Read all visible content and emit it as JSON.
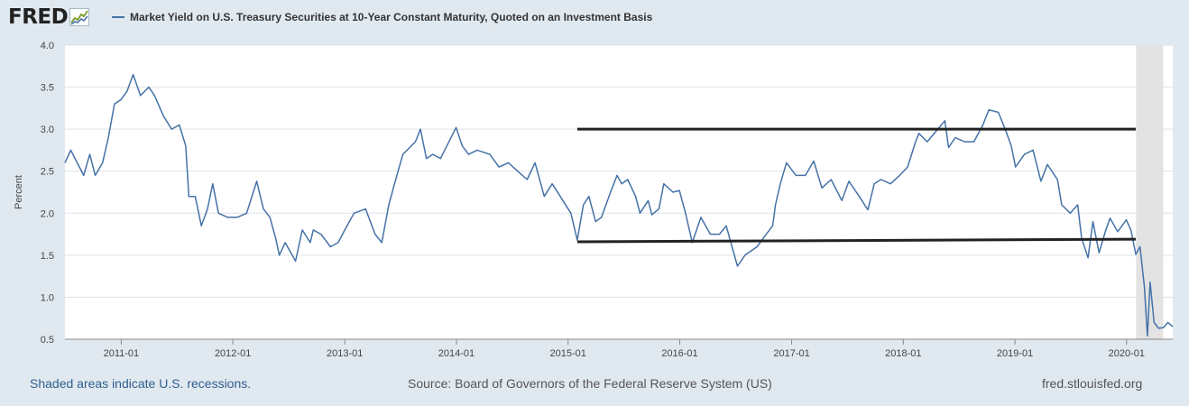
{
  "logo": {
    "text": "FRED",
    "icon": "fred-graph-icon"
  },
  "chart_data": {
    "type": "line",
    "title": "Market Yield on U.S. Treasury Securities at 10-Year Constant Maturity, Quoted on an Investment Basis",
    "ylabel": "Percent",
    "xlabel": "",
    "ylim": [
      0.5,
      4.0
    ],
    "xlim": [
      "2010-07-01",
      "2020-05-31"
    ],
    "y_ticks": [
      "0.5",
      "1.0",
      "1.5",
      "2.0",
      "2.5",
      "3.0",
      "3.5",
      "4.0"
    ],
    "x_ticks": [
      "2011-01",
      "2012-01",
      "2013-01",
      "2014-01",
      "2015-01",
      "2016-01",
      "2017-01",
      "2018-01",
      "2019-01",
      "2020-01"
    ],
    "grid": true,
    "series": [
      {
        "name": "Market Yield on U.S. Treasury Securities at 10-Year Constant Maturity, Quoted on an Investment Basis",
        "color": "#4572a7",
        "points": [
          [
            "2010-07-01",
            2.6
          ],
          [
            "2010-07-20",
            2.75
          ],
          [
            "2010-08-10",
            2.6
          ],
          [
            "2010-08-31",
            2.45
          ],
          [
            "2010-09-20",
            2.7
          ],
          [
            "2010-10-08",
            2.45
          ],
          [
            "2010-11-01",
            2.6
          ],
          [
            "2010-11-20",
            2.9
          ],
          [
            "2010-12-10",
            3.3
          ],
          [
            "2010-12-31",
            3.35
          ],
          [
            "2011-01-20",
            3.45
          ],
          [
            "2011-02-09",
            3.65
          ],
          [
            "2011-03-05",
            3.4
          ],
          [
            "2011-04-01",
            3.5
          ],
          [
            "2011-04-20",
            3.4
          ],
          [
            "2011-05-20",
            3.15
          ],
          [
            "2011-06-15",
            3.0
          ],
          [
            "2011-07-10",
            3.05
          ],
          [
            "2011-07-31",
            2.8
          ],
          [
            "2011-08-10",
            2.2
          ],
          [
            "2011-08-31",
            2.2
          ],
          [
            "2011-09-20",
            1.85
          ],
          [
            "2011-10-10",
            2.05
          ],
          [
            "2011-10-27",
            2.35
          ],
          [
            "2011-11-15",
            2.0
          ],
          [
            "2011-12-15",
            1.95
          ],
          [
            "2012-01-15",
            1.95
          ],
          [
            "2012-02-15",
            2.0
          ],
          [
            "2012-03-19",
            2.38
          ],
          [
            "2012-04-10",
            2.05
          ],
          [
            "2012-05-01",
            1.95
          ],
          [
            "2012-05-20",
            1.7
          ],
          [
            "2012-06-01",
            1.5
          ],
          [
            "2012-06-20",
            1.65
          ],
          [
            "2012-07-24",
            1.43
          ],
          [
            "2012-08-15",
            1.8
          ],
          [
            "2012-09-10",
            1.65
          ],
          [
            "2012-09-20",
            1.8
          ],
          [
            "2012-10-15",
            1.75
          ],
          [
            "2012-11-15",
            1.6
          ],
          [
            "2012-12-10",
            1.65
          ],
          [
            "2013-01-01",
            1.8
          ],
          [
            "2013-01-31",
            2.0
          ],
          [
            "2013-03-10",
            2.05
          ],
          [
            "2013-04-10",
            1.75
          ],
          [
            "2013-05-02",
            1.65
          ],
          [
            "2013-05-25",
            2.1
          ],
          [
            "2013-06-20",
            2.45
          ],
          [
            "2013-07-10",
            2.7
          ],
          [
            "2013-08-20",
            2.85
          ],
          [
            "2013-09-05",
            3.0
          ],
          [
            "2013-09-25",
            2.65
          ],
          [
            "2013-10-15",
            2.7
          ],
          [
            "2013-11-10",
            2.65
          ],
          [
            "2013-12-31",
            3.02
          ],
          [
            "2014-01-20",
            2.8
          ],
          [
            "2014-02-10",
            2.7
          ],
          [
            "2014-03-10",
            2.75
          ],
          [
            "2014-04-20",
            2.7
          ],
          [
            "2014-05-20",
            2.55
          ],
          [
            "2014-06-20",
            2.6
          ],
          [
            "2014-07-20",
            2.5
          ],
          [
            "2014-08-20",
            2.4
          ],
          [
            "2014-09-15",
            2.6
          ],
          [
            "2014-10-15",
            2.2
          ],
          [
            "2014-11-10",
            2.35
          ],
          [
            "2014-12-15",
            2.15
          ],
          [
            "2015-01-10",
            2.0
          ],
          [
            "2015-01-31",
            1.68
          ],
          [
            "2015-02-20",
            2.1
          ],
          [
            "2015-03-10",
            2.2
          ],
          [
            "2015-04-01",
            1.9
          ],
          [
            "2015-04-20",
            1.95
          ],
          [
            "2015-05-20",
            2.25
          ],
          [
            "2015-06-10",
            2.45
          ],
          [
            "2015-06-25",
            2.35
          ],
          [
            "2015-07-15",
            2.4
          ],
          [
            "2015-08-10",
            2.2
          ],
          [
            "2015-08-24",
            2.0
          ],
          [
            "2015-09-20",
            2.15
          ],
          [
            "2015-10-02",
            1.98
          ],
          [
            "2015-10-25",
            2.05
          ],
          [
            "2015-11-10",
            2.35
          ],
          [
            "2015-12-10",
            2.25
          ],
          [
            "2015-12-31",
            2.27
          ],
          [
            "2016-01-20",
            2.0
          ],
          [
            "2016-02-11",
            1.65
          ],
          [
            "2016-03-10",
            1.95
          ],
          [
            "2016-04-10",
            1.75
          ],
          [
            "2016-05-10",
            1.75
          ],
          [
            "2016-06-01",
            1.85
          ],
          [
            "2016-06-20",
            1.6
          ],
          [
            "2016-07-08",
            1.37
          ],
          [
            "2016-08-01",
            1.5
          ],
          [
            "2016-09-10",
            1.6
          ],
          [
            "2016-10-10",
            1.75
          ],
          [
            "2016-10-31",
            1.85
          ],
          [
            "2016-11-09",
            2.1
          ],
          [
            "2016-11-25",
            2.35
          ],
          [
            "2016-12-15",
            2.6
          ],
          [
            "2017-01-15",
            2.45
          ],
          [
            "2017-02-15",
            2.45
          ],
          [
            "2017-03-14",
            2.62
          ],
          [
            "2017-04-10",
            2.3
          ],
          [
            "2017-05-10",
            2.4
          ],
          [
            "2017-06-14",
            2.15
          ],
          [
            "2017-07-07",
            2.38
          ],
          [
            "2017-08-10",
            2.2
          ],
          [
            "2017-09-07",
            2.04
          ],
          [
            "2017-09-28",
            2.35
          ],
          [
            "2017-10-20",
            2.4
          ],
          [
            "2017-11-20",
            2.35
          ],
          [
            "2017-12-20",
            2.45
          ],
          [
            "2018-01-15",
            2.55
          ],
          [
            "2018-02-10",
            2.85
          ],
          [
            "2018-02-21",
            2.95
          ],
          [
            "2018-03-20",
            2.85
          ],
          [
            "2018-04-24",
            3.0
          ],
          [
            "2018-05-17",
            3.1
          ],
          [
            "2018-05-29",
            2.78
          ],
          [
            "2018-06-20",
            2.9
          ],
          [
            "2018-07-20",
            2.85
          ],
          [
            "2018-08-20",
            2.85
          ],
          [
            "2018-09-18",
            3.05
          ],
          [
            "2018-10-08",
            3.23
          ],
          [
            "2018-11-08",
            3.2
          ],
          [
            "2018-11-30",
            3.0
          ],
          [
            "2018-12-20",
            2.8
          ],
          [
            "2019-01-03",
            2.55
          ],
          [
            "2019-02-01",
            2.7
          ],
          [
            "2019-03-01",
            2.75
          ],
          [
            "2019-03-27",
            2.38
          ],
          [
            "2019-04-17",
            2.58
          ],
          [
            "2019-05-20",
            2.4
          ],
          [
            "2019-06-03",
            2.1
          ],
          [
            "2019-07-01",
            2.0
          ],
          [
            "2019-07-25",
            2.1
          ],
          [
            "2019-08-07",
            1.7
          ],
          [
            "2019-08-28",
            1.47
          ],
          [
            "2019-09-13",
            1.9
          ],
          [
            "2019-10-03",
            1.53
          ],
          [
            "2019-10-25",
            1.8
          ],
          [
            "2019-11-08",
            1.94
          ],
          [
            "2019-12-03",
            1.78
          ],
          [
            "2019-12-31",
            1.92
          ],
          [
            "2020-01-15",
            1.8
          ],
          [
            "2020-01-31",
            1.51
          ],
          [
            "2020-02-14",
            1.6
          ],
          [
            "2020-02-28",
            1.13
          ],
          [
            "2020-03-09",
            0.54
          ],
          [
            "2020-03-18",
            1.18
          ],
          [
            "2020-03-31",
            0.7
          ],
          [
            "2020-04-15",
            0.63
          ],
          [
            "2020-05-01",
            0.64
          ],
          [
            "2020-05-15",
            0.7
          ],
          [
            "2020-05-31",
            0.65
          ]
        ]
      }
    ],
    "annotations": [
      {
        "kind": "horizontal-line",
        "color": "#222222",
        "x_start": "2015-01-31",
        "x_end": "2020-01-31",
        "y_start": 3.0,
        "y_end": 3.0
      },
      {
        "kind": "horizontal-line",
        "color": "#222222",
        "x_start": "2015-01-31",
        "x_end": "2020-01-31",
        "y_start": 1.66,
        "y_end": 1.69
      }
    ],
    "recessions": [
      {
        "start": "2020-02-01",
        "end": "2020-04-30"
      }
    ]
  },
  "colors": {
    "background": "#e1e9f0",
    "plot_background": "#ffffff",
    "line": "#4572a7",
    "gridline": "#dde3e8",
    "recession": "#e3e3e3",
    "annotation": "#222222"
  },
  "footer": {
    "left": "Shaded areas indicate U.S. recessions.",
    "middle": "Source: Board of Governors of the Federal Reserve System (US)",
    "right": "fred.stlouisfed.org"
  }
}
